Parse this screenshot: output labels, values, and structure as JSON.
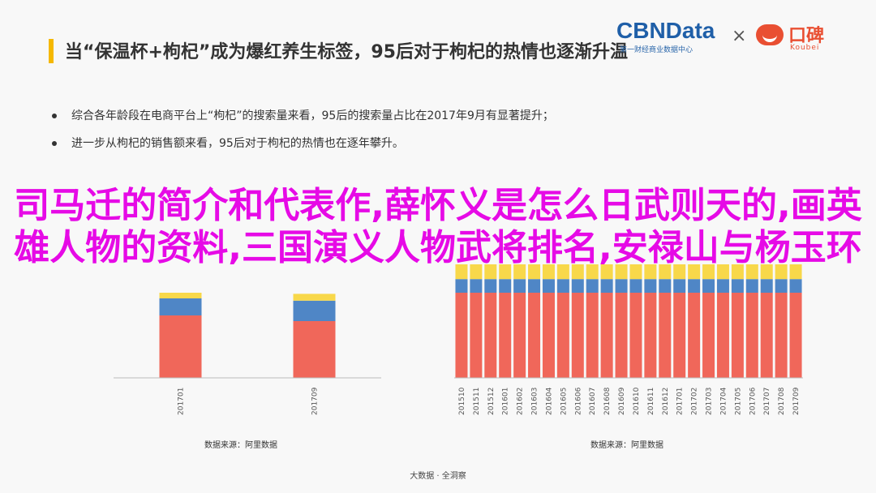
{
  "slide": {
    "title": "当“保温杯+枸杞”成为爆红养生标签，95后对于枸杞的热情也逐渐升温",
    "bullets": [
      "综合各年龄段在电商平台上“枸杞”的搜索量来看，95后的搜索量占比在2017年9月有显著提升；",
      "进一步从枸杞的销售额来看，95后对于枸杞的热情也在逐年攀升。"
    ],
    "overlay_text": "司马迁的简介和代表作,薛怀义是怎么日武则天的,画英雄人物的资料,三国演义人物武将排名,安禄山与杨玉环",
    "source_left": "数据来源：阿里数据",
    "source_right": "数据来源：阿里数据",
    "footer": "大数据 · 全洞察"
  },
  "logos": {
    "cbn": "CBNData",
    "cbn_sub": "第一财经商业数据中心",
    "times": "×",
    "koubei": "口碑",
    "koubei_sub": "Koubei"
  },
  "colors": {
    "red": "#f0675a",
    "blue": "#4f86c6",
    "yellow": "#f8d84a",
    "overlay": "#e60ae6",
    "accent": "#f5b800"
  },
  "chart_data": [
    {
      "type": "bar",
      "stacked": true,
      "title": "",
      "categories": [
        "201701",
        "201709"
      ],
      "series": [
        {
          "values": [
            55,
            50
          ]
        },
        {
          "values": [
            15,
            18
          ]
        },
        {
          "values": [
            5,
            6
          ]
        }
      ],
      "ylim": [
        0,
        100
      ]
    },
    {
      "type": "bar",
      "stacked": true,
      "title": "",
      "categories": [
        "201510",
        "201511",
        "201512",
        "201601",
        "201602",
        "201603",
        "201604",
        "201605",
        "201606",
        "201607",
        "201608",
        "201609",
        "201610",
        "201611",
        "201612",
        "201701",
        "201702",
        "201703",
        "201704",
        "201705",
        "201706",
        "201707",
        "201708",
        "201709"
      ],
      "series": [
        {
          "values": [
            75,
            75,
            75,
            75,
            75,
            75,
            75,
            75,
            75,
            75,
            75,
            75,
            75,
            75,
            75,
            75,
            75,
            75,
            75,
            75,
            75,
            75,
            75,
            75
          ]
        },
        {
          "values": [
            12,
            12,
            12,
            12,
            12,
            12,
            12,
            12,
            12,
            12,
            12,
            12,
            12,
            12,
            12,
            12,
            12,
            12,
            12,
            12,
            12,
            12,
            12,
            12
          ]
        },
        {
          "values": [
            13,
            13,
            13,
            13,
            13,
            13,
            13,
            13,
            13,
            13,
            13,
            13,
            13,
            13,
            13,
            13,
            13,
            13,
            13,
            13,
            13,
            13,
            13,
            13
          ]
        }
      ],
      "ylim": [
        0,
        100
      ]
    }
  ]
}
